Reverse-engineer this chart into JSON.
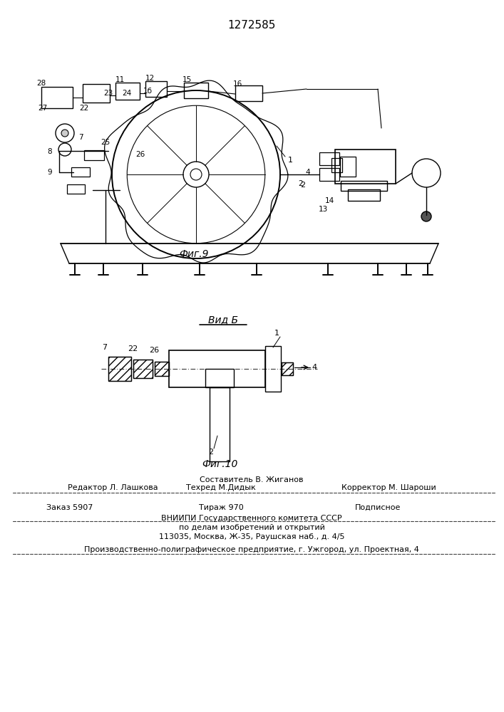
{
  "patent_number": "1272585",
  "fig9_label": "Фиг.9",
  "fig10_label": "Фиг.10",
  "vidb_label": "Вид Б",
  "footer_line1_left": "Редактор Л. Лашкова",
  "footer_line1_center": "Составитель В. Жиганов",
  "footer_line1_center2": "Техред М.Дидык",
  "footer_line1_right": "Корректор М. Шароши",
  "footer_line2_left": "Заказ 5907",
  "footer_line2_center": "Тираж 970",
  "footer_line2_right": "Подписное",
  "footer_line3": "ВНИИПИ Государственного комитета СССР",
  "footer_line4": "по делам изобретений и открытий",
  "footer_line5": "113035, Москва, Ж-35, Раушская наб., д. 4/5",
  "footer_line6": "Производственно-полиграфическое предприятие, г. Ужгород, ул. Проектная, 4",
  "bg_color": "#ffffff",
  "line_color": "#000000",
  "font_size_patent": 11,
  "font_size_fig": 10,
  "font_size_footer": 8
}
